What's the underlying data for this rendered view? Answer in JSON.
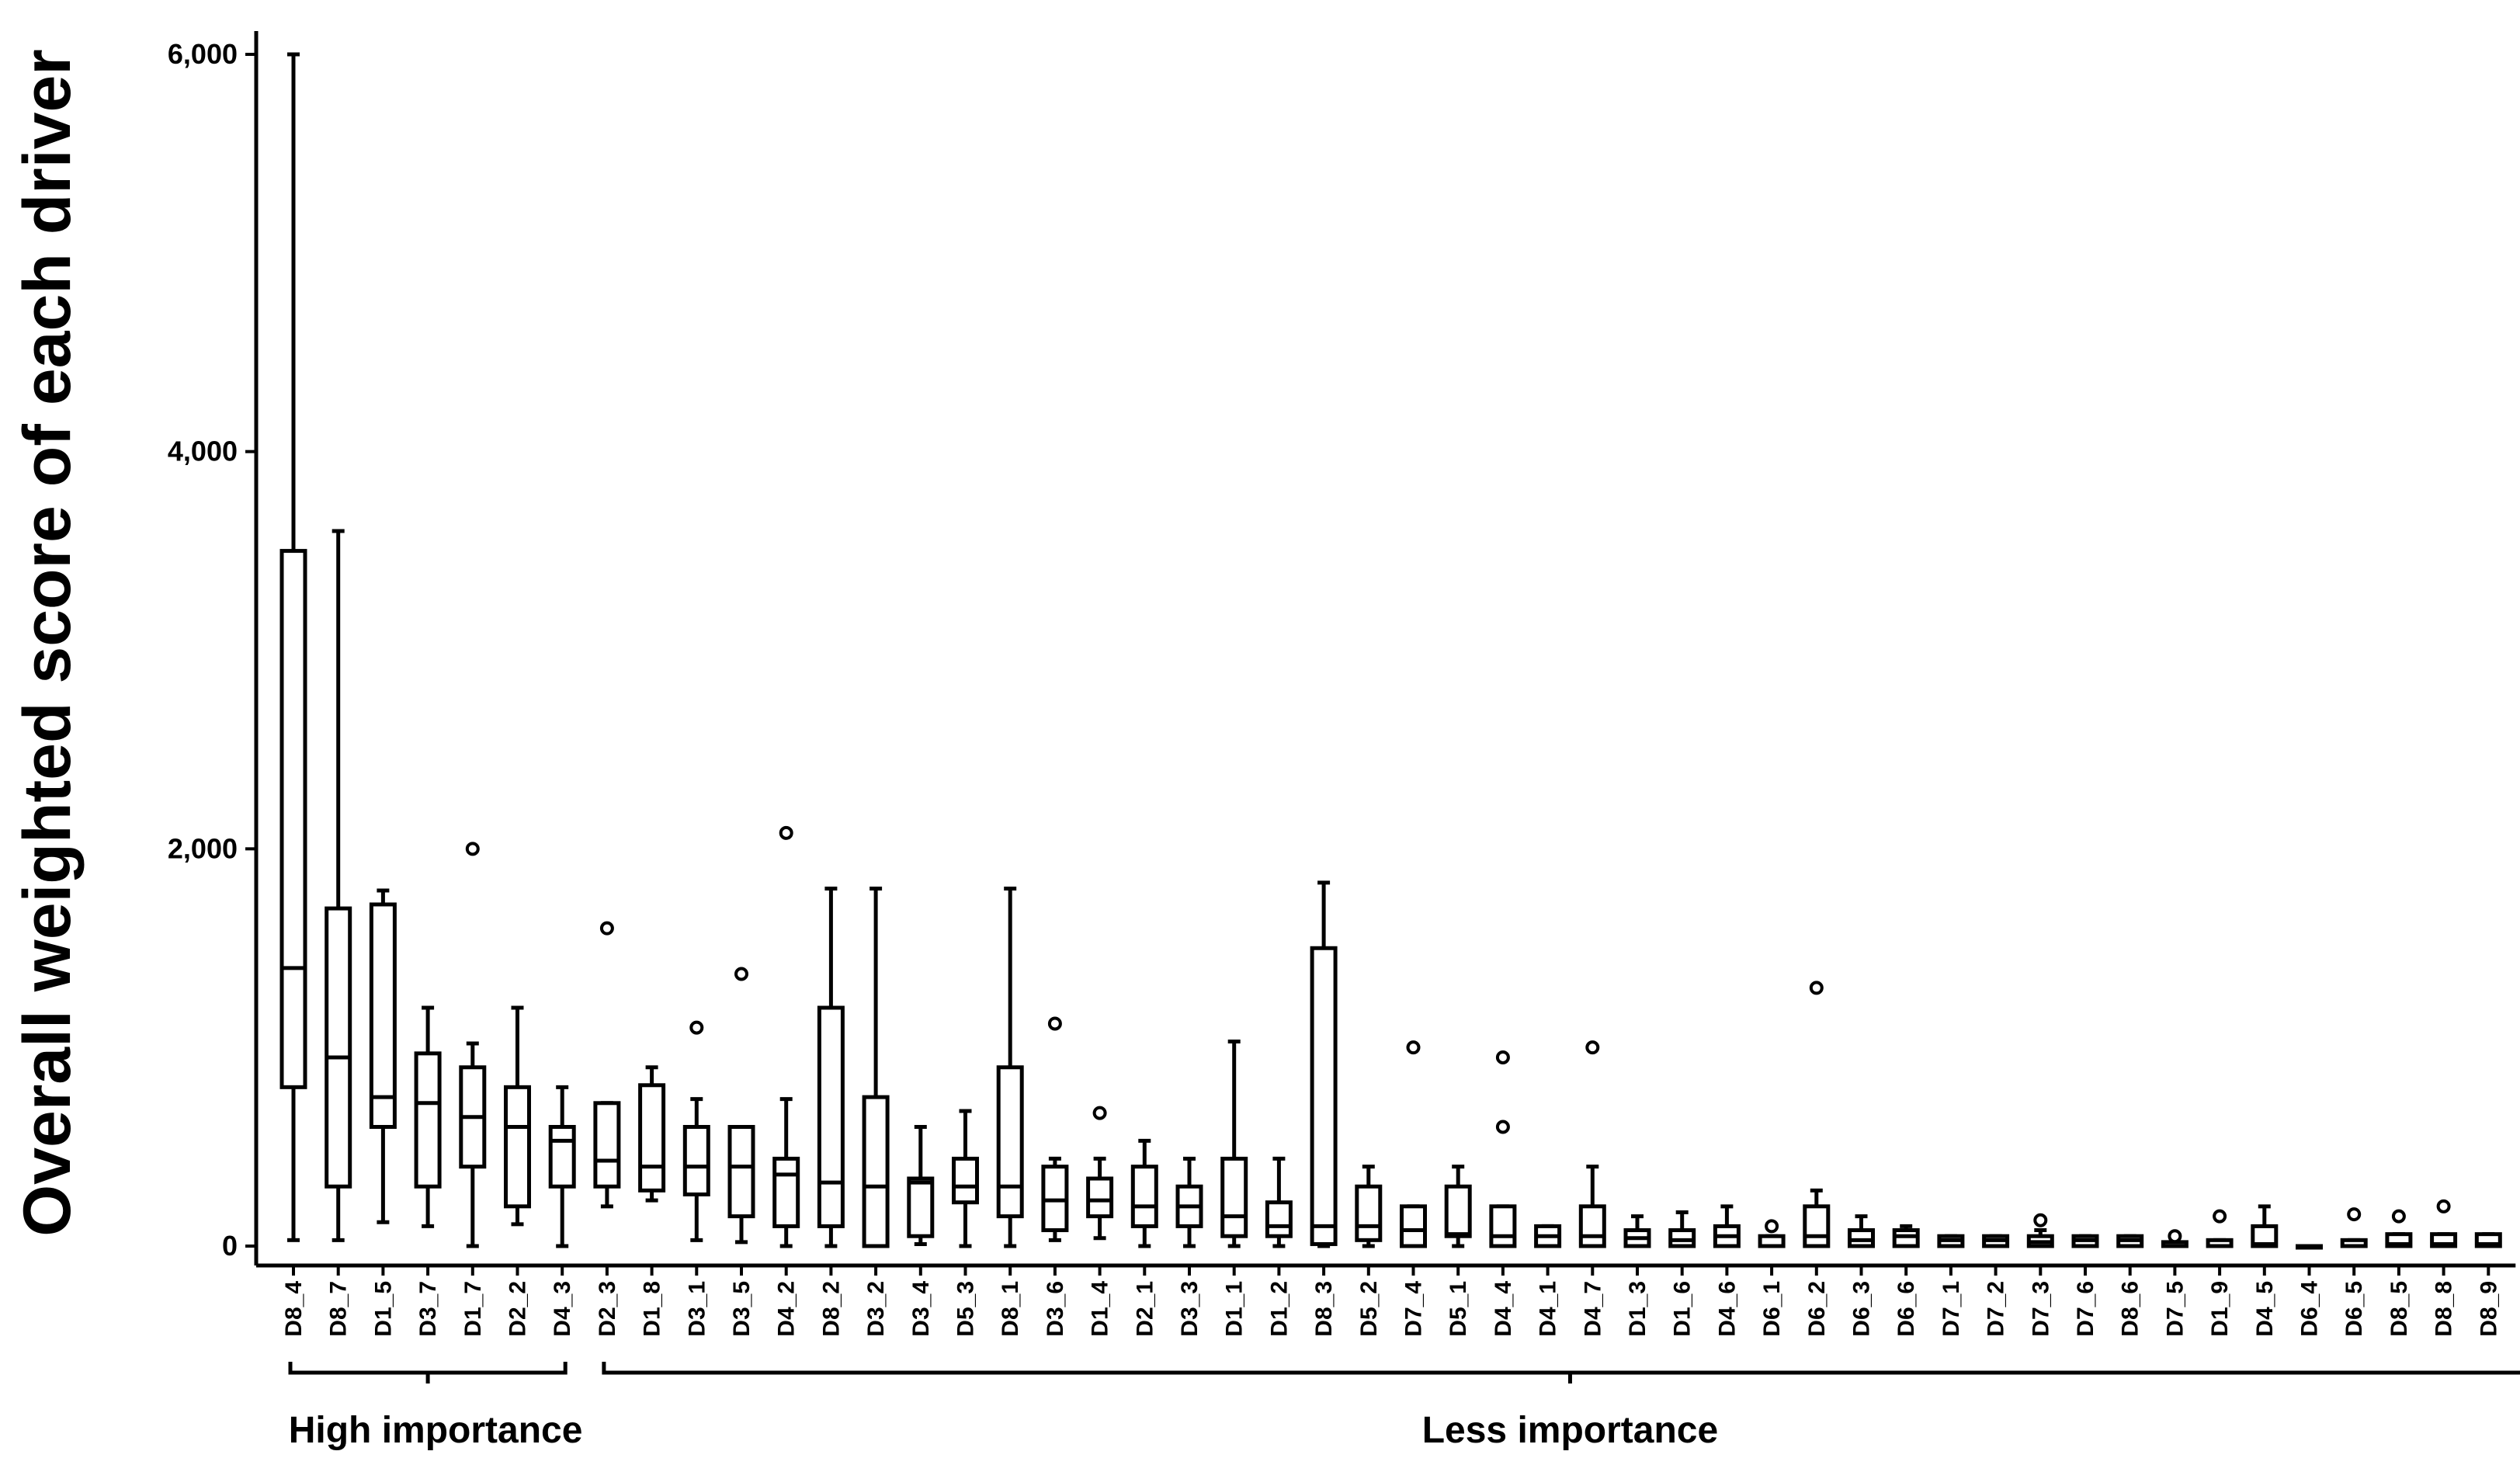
{
  "chart_data": {
    "type": "box",
    "ylabel": "Overall weighted score of each driver",
    "ylim": [
      0,
      6000
    ],
    "yticks": [
      0,
      2000,
      4000,
      6000
    ],
    "ytick_labels": [
      "0",
      "2,000",
      "4,000",
      "6,000"
    ],
    "grid": false,
    "groups": [
      {
        "label": "High importance",
        "from": 0,
        "to": 6
      },
      {
        "label": "Less importance",
        "from": 7,
        "to": 50
      }
    ],
    "boxes": [
      {
        "category": "D8_4",
        "min": 30,
        "q1": 800,
        "median": 1400,
        "q3": 3500,
        "max": 6000,
        "outliers": []
      },
      {
        "category": "D8_7",
        "min": 30,
        "q1": 300,
        "median": 950,
        "q3": 1700,
        "max": 3600,
        "outliers": []
      },
      {
        "category": "D1_5",
        "min": 120,
        "q1": 600,
        "median": 750,
        "q3": 1720,
        "max": 1790,
        "outliers": []
      },
      {
        "category": "D3_7",
        "min": 100,
        "q1": 300,
        "median": 720,
        "q3": 970,
        "max": 1200,
        "outliers": []
      },
      {
        "category": "D1_7",
        "min": 0,
        "q1": 400,
        "median": 650,
        "q3": 900,
        "max": 1020,
        "outliers": [
          2000
        ]
      },
      {
        "category": "D2_2",
        "min": 110,
        "q1": 200,
        "median": 600,
        "q3": 800,
        "max": 1200,
        "outliers": []
      },
      {
        "category": "D4_3",
        "min": 0,
        "q1": 300,
        "median": 530,
        "q3": 600,
        "max": 800,
        "outliers": []
      },
      {
        "category": "D2_3",
        "min": 200,
        "q1": 300,
        "median": 430,
        "q3": 720,
        "max": 720,
        "outliers": [
          1600
        ]
      },
      {
        "category": "D1_8",
        "min": 230,
        "q1": 280,
        "median": 400,
        "q3": 810,
        "max": 900,
        "outliers": []
      },
      {
        "category": "D3_1",
        "min": 30,
        "q1": 260,
        "median": 400,
        "q3": 600,
        "max": 740,
        "outliers": [
          1100
        ]
      },
      {
        "category": "D3_5",
        "min": 20,
        "q1": 150,
        "median": 400,
        "q3": 600,
        "max": 600,
        "outliers": [
          1370
        ]
      },
      {
        "category": "D4_2",
        "min": 0,
        "q1": 100,
        "median": 360,
        "q3": 440,
        "max": 740,
        "outliers": [
          2080
        ]
      },
      {
        "category": "D8_2",
        "min": 0,
        "q1": 100,
        "median": 320,
        "q3": 1200,
        "max": 1800,
        "outliers": []
      },
      {
        "category": "D3_2",
        "min": 0,
        "q1": 0,
        "median": 300,
        "q3": 750,
        "max": 1800,
        "outliers": []
      },
      {
        "category": "D3_4",
        "min": 10,
        "q1": 50,
        "median": 320,
        "q3": 340,
        "max": 600,
        "outliers": []
      },
      {
        "category": "D5_3",
        "min": 0,
        "q1": 220,
        "median": 300,
        "q3": 440,
        "max": 680,
        "outliers": []
      },
      {
        "category": "D8_1",
        "min": 0,
        "q1": 150,
        "median": 300,
        "q3": 900,
        "max": 1800,
        "outliers": []
      },
      {
        "category": "D3_6",
        "min": 30,
        "q1": 80,
        "median": 230,
        "q3": 400,
        "max": 440,
        "outliers": [
          1120
        ]
      },
      {
        "category": "D1_4",
        "min": 40,
        "q1": 150,
        "median": 230,
        "q3": 340,
        "max": 440,
        "outliers": [
          670
        ]
      },
      {
        "category": "D2_1",
        "min": 0,
        "q1": 100,
        "median": 200,
        "q3": 400,
        "max": 530,
        "outliers": []
      },
      {
        "category": "D3_3",
        "min": 0,
        "q1": 100,
        "median": 200,
        "q3": 300,
        "max": 440,
        "outliers": []
      },
      {
        "category": "D1_1",
        "min": 0,
        "q1": 50,
        "median": 150,
        "q3": 440,
        "max": 1030,
        "outliers": []
      },
      {
        "category": "D1_2",
        "min": 0,
        "q1": 50,
        "median": 100,
        "q3": 220,
        "max": 440,
        "outliers": []
      },
      {
        "category": "D8_3",
        "min": 0,
        "q1": 10,
        "median": 100,
        "q3": 1500,
        "max": 1830,
        "outliers": []
      },
      {
        "category": "D5_2",
        "min": 0,
        "q1": 30,
        "median": 100,
        "q3": 300,
        "max": 400,
        "outliers": []
      },
      {
        "category": "D7_4",
        "min": 0,
        "q1": 0,
        "median": 80,
        "q3": 200,
        "max": 200,
        "outliers": [
          1000
        ]
      },
      {
        "category": "D5_1",
        "min": 0,
        "q1": 50,
        "median": 60,
        "q3": 300,
        "max": 400,
        "outliers": []
      },
      {
        "category": "D4_4",
        "min": 0,
        "q1": 0,
        "median": 50,
        "q3": 200,
        "max": 200,
        "outliers": [
          600,
          950
        ]
      },
      {
        "category": "D4_1",
        "min": 0,
        "q1": 0,
        "median": 50,
        "q3": 100,
        "max": 100,
        "outliers": []
      },
      {
        "category": "D4_7",
        "min": 0,
        "q1": 0,
        "median": 50,
        "q3": 200,
        "max": 400,
        "outliers": [
          1000
        ]
      },
      {
        "category": "D1_3",
        "min": 0,
        "q1": 0,
        "median": 40,
        "q3": 80,
        "max": 150,
        "outliers": []
      },
      {
        "category": "D1_6",
        "min": 0,
        "q1": 0,
        "median": 30,
        "q3": 80,
        "max": 170,
        "outliers": []
      },
      {
        "category": "D4_6",
        "min": 0,
        "q1": 0,
        "median": 50,
        "q3": 100,
        "max": 200,
        "outliers": []
      },
      {
        "category": "D6_1",
        "min": 0,
        "q1": 0,
        "median": 0,
        "q3": 50,
        "max": 50,
        "outliers": [
          100
        ]
      },
      {
        "category": "D6_2",
        "min": 0,
        "q1": 0,
        "median": 50,
        "q3": 200,
        "max": 280,
        "outliers": [
          1300
        ]
      },
      {
        "category": "D6_3",
        "min": 0,
        "q1": 0,
        "median": 30,
        "q3": 80,
        "max": 150,
        "outliers": []
      },
      {
        "category": "D6_6",
        "min": 0,
        "q1": 0,
        "median": 50,
        "q3": 80,
        "max": 100,
        "outliers": []
      },
      {
        "category": "D7_1",
        "min": 0,
        "q1": 0,
        "median": 30,
        "q3": 50,
        "max": 50,
        "outliers": []
      },
      {
        "category": "D7_2",
        "min": 0,
        "q1": 0,
        "median": 30,
        "q3": 50,
        "max": 50,
        "outliers": []
      },
      {
        "category": "D7_3",
        "min": 0,
        "q1": 0,
        "median": 20,
        "q3": 50,
        "max": 80,
        "outliers": [
          130
        ]
      },
      {
        "category": "D7_6",
        "min": 0,
        "q1": 0,
        "median": 30,
        "q3": 50,
        "max": 50,
        "outliers": []
      },
      {
        "category": "D8_6",
        "min": 0,
        "q1": 0,
        "median": 30,
        "q3": 50,
        "max": 50,
        "outliers": []
      },
      {
        "category": "D7_5",
        "min": 0,
        "q1": 0,
        "median": 0,
        "q3": 20,
        "max": 20,
        "outliers": [
          50
        ]
      },
      {
        "category": "D1_9",
        "min": 0,
        "q1": 0,
        "median": 0,
        "q3": 30,
        "max": 30,
        "outliers": [
          150
        ]
      },
      {
        "category": "D4_5",
        "min": 0,
        "q1": 0,
        "median": 10,
        "q3": 100,
        "max": 200,
        "outliers": []
      },
      {
        "category": "D6_4",
        "min": 0,
        "q1": 0,
        "median": 0,
        "q3": 0,
        "max": 0,
        "outliers": []
      },
      {
        "category": "D6_5",
        "min": 0,
        "q1": 0,
        "median": 0,
        "q3": 30,
        "max": 30,
        "outliers": [
          160
        ]
      },
      {
        "category": "D8_5",
        "min": 0,
        "q1": 0,
        "median": 10,
        "q3": 60,
        "max": 60,
        "outliers": [
          150
        ]
      },
      {
        "category": "D8_8",
        "min": 0,
        "q1": 0,
        "median": 10,
        "q3": 60,
        "max": 60,
        "outliers": [
          200
        ]
      },
      {
        "category": "D8_9",
        "min": 0,
        "q1": 0,
        "median": 10,
        "q3": 60,
        "max": 60,
        "outliers": []
      }
    ]
  }
}
